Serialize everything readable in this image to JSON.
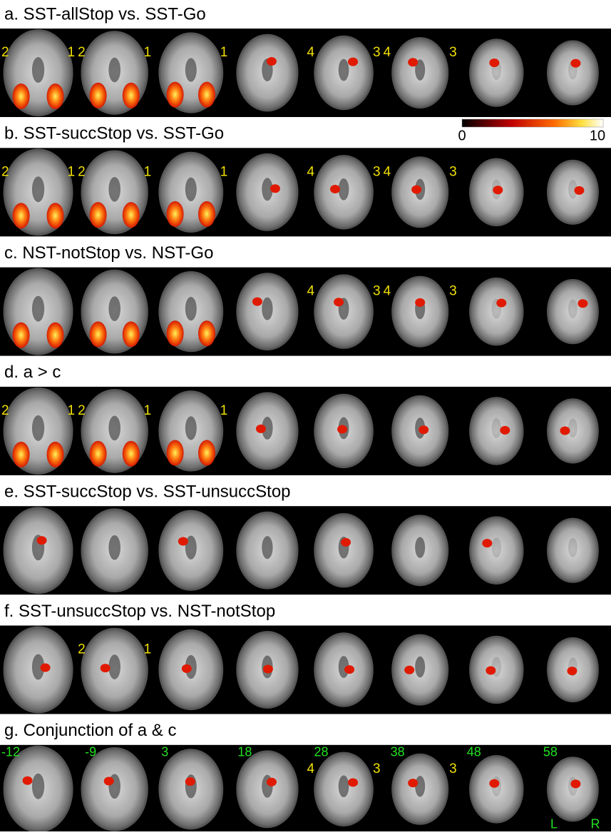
{
  "panels": [
    {
      "title": "a. SST-allStop vs. SST-Go",
      "slices": [
        {
          "left": "2",
          "right": "1"
        },
        {
          "left": "2",
          "right": "1"
        },
        {
          "right": "1"
        },
        {},
        {
          "left": "4",
          "right": "3"
        },
        {
          "left": "4",
          "right": "3"
        },
        {},
        {}
      ]
    },
    {
      "title": "b. SST-succStop vs. SST-Go",
      "slices": [
        {
          "left": "2",
          "right": "1"
        },
        {
          "left": "2",
          "right": "1"
        },
        {
          "right": "1"
        },
        {},
        {
          "left": "4",
          "right": "3"
        },
        {
          "left": "4",
          "right": "3"
        },
        {},
        {}
      ]
    },
    {
      "title": "c. NST-notStop vs. NST-Go",
      "slices": [
        {},
        {},
        {},
        {},
        {
          "left": "4",
          "right": "3"
        },
        {
          "left": "4",
          "right": "3"
        },
        {},
        {}
      ]
    },
    {
      "title": "d. a > c",
      "slices": [
        {
          "left": "2",
          "right": "1"
        },
        {
          "left": "2",
          "right": "1"
        },
        {
          "right": "1"
        },
        {},
        {},
        {},
        {},
        {}
      ]
    },
    {
      "title": "e. SST-succStop vs. SST-unsuccStop",
      "slices": [
        {},
        {},
        {},
        {},
        {},
        {},
        {},
        {}
      ]
    },
    {
      "title": "f.  SST-unsuccStop vs. NST-notStop",
      "slices": [
        {},
        {
          "left": "2",
          "right": "1"
        },
        {},
        {},
        {},
        {},
        {},
        {}
      ]
    },
    {
      "title": "g. Conjunction of a & c",
      "slices": [
        {},
        {},
        {},
        {},
        {
          "left": "4",
          "right": "3"
        },
        {
          "right": "3"
        },
        {},
        {}
      ]
    }
  ],
  "colorbar": {
    "min_label": "0",
    "max_label": "10"
  },
  "slice_z": [
    "-12",
    "-9",
    "3",
    "18",
    "28",
    "38",
    "48",
    "58"
  ],
  "orientation": {
    "left": "L",
    "right": "R"
  }
}
